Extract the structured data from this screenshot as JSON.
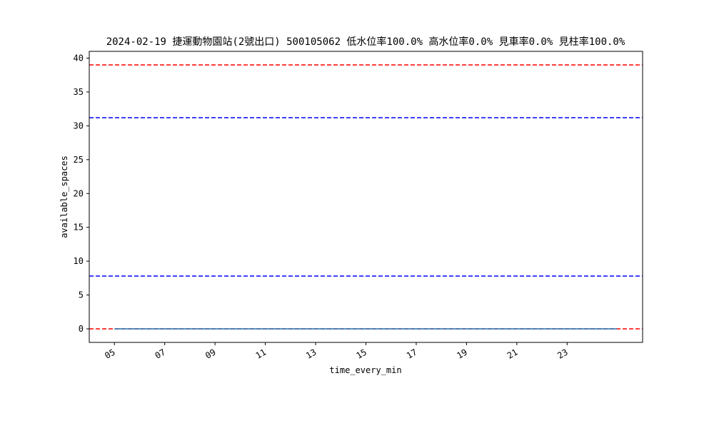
{
  "chart_data": {
    "type": "line",
    "title": "2024-02-19 捷運動物園站(2號出口) 500105062 低水位率100.0% 高水位率0.0% 見車率0.0% 見柱率100.0%",
    "xlabel": "time_every_min",
    "ylabel": "available_spaces",
    "xlim": [
      "04:00",
      "26:00"
    ],
    "ylim": [
      -2,
      41
    ],
    "x_ticks": [
      "05",
      "07",
      "09",
      "11",
      "13",
      "15",
      "17",
      "19",
      "21",
      "23"
    ],
    "y_ticks": [
      0,
      5,
      10,
      15,
      20,
      25,
      30,
      35,
      40
    ],
    "grid": false,
    "series": [
      {
        "type": "line",
        "color": "#1f77b4",
        "x": [
          "05:00",
          "24:59"
        ],
        "values": [
          0,
          0
        ]
      }
    ],
    "reference_lines": [
      {
        "y": 39,
        "color": "#ff0000",
        "style": "dashed"
      },
      {
        "y": 31.2,
        "color": "#0000ff",
        "style": "dashed"
      },
      {
        "y": 7.8,
        "color": "#0000ff",
        "style": "dashed"
      },
      {
        "y": 0,
        "color": "#ff0000",
        "style": "dashed"
      }
    ]
  }
}
